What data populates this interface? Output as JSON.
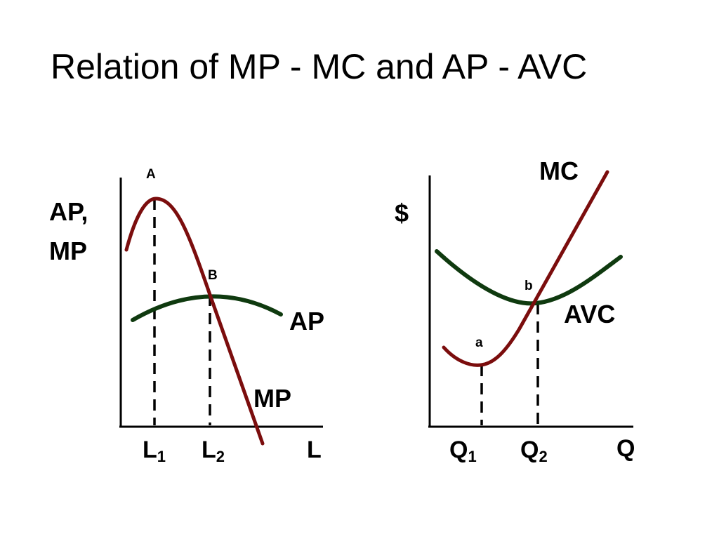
{
  "title": "Relation of MP - MC and AP - AVC",
  "colors": {
    "mp_mc_curve": "#7b0d0d",
    "ap_avc_curve": "#0f3a0f",
    "axis": "#000000"
  },
  "left_graph": {
    "y_axis_label_line1": "AP,",
    "y_axis_label_line2": "MP",
    "x_axis_label": "L",
    "tick1_base": "L",
    "tick1_sub": "1",
    "tick2_base": "L",
    "tick2_sub": "2",
    "point_a_label": "A",
    "point_b_label": "B",
    "curve_mp_label": "MP",
    "curve_ap_label": "AP"
  },
  "right_graph": {
    "y_axis_label": "$",
    "x_axis_label": "Q",
    "tick1_base": "Q",
    "tick1_sub": "1",
    "tick2_base": "Q",
    "tick2_sub": "2",
    "point_a_label": "a",
    "point_b_label": "b",
    "curve_mc_label": "MC",
    "curve_avc_label": "AVC"
  }
}
